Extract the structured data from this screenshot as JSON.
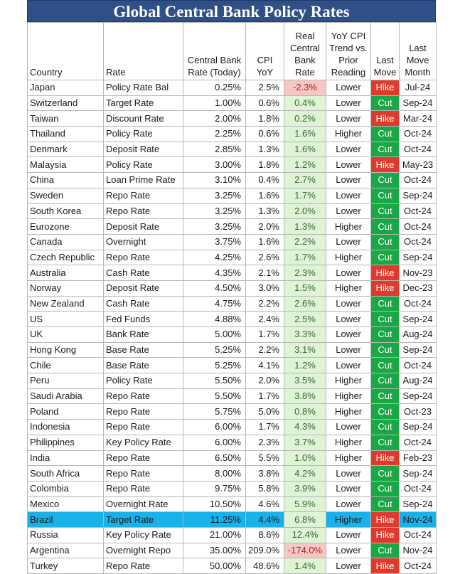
{
  "title": "Global Central Bank Policy Rates",
  "colors": {
    "title_bg": "#2f4f87",
    "hike": "#e03a2c",
    "cut": "#1aa746",
    "real_pos": "#dff3d6",
    "real_neg": "#f6c7c5",
    "highlight": "#1ab0e8"
  },
  "headers": {
    "country": "Country",
    "rate": "Rate",
    "cb_rate": "Central Bank Rate (Today)",
    "cpi": "CPI YoY",
    "real": "Real Central Bank Rate",
    "trend": "YoY CPI Trend vs. Prior Reading",
    "last_move": "Last Move",
    "last_month": "Last Move Month"
  },
  "rows": [
    {
      "country": "Japan",
      "rate": "Policy Rate Bal",
      "cb": "0.25%",
      "cpi": "2.5%",
      "real": "-2.3%",
      "trend": "Lower",
      "move": "Hike",
      "month": "Jul-24"
    },
    {
      "country": "Switzerland",
      "rate": "Target Rate",
      "cb": "1.00%",
      "cpi": "0.6%",
      "real": "0.4%",
      "trend": "Lower",
      "move": "Cut",
      "month": "Sep-24"
    },
    {
      "country": "Taiwan",
      "rate": "Discount Rate",
      "cb": "2.00%",
      "cpi": "1.8%",
      "real": "0.2%",
      "trend": "Lower",
      "move": "Hike",
      "month": "Mar-24"
    },
    {
      "country": "Thailand",
      "rate": "Policy Rate",
      "cb": "2.25%",
      "cpi": "0.6%",
      "real": "1.6%",
      "trend": "Higher",
      "move": "Cut",
      "month": "Oct-24"
    },
    {
      "country": "Denmark",
      "rate": "Deposit Rate",
      "cb": "2.85%",
      "cpi": "1.3%",
      "real": "1.6%",
      "trend": "Lower",
      "move": "Cut",
      "month": "Oct-24"
    },
    {
      "country": "Malaysia",
      "rate": "Policy Rate",
      "cb": "3.00%",
      "cpi": "1.8%",
      "real": "1.2%",
      "trend": "Lower",
      "move": "Hike",
      "month": "May-23"
    },
    {
      "country": "China",
      "rate": "Loan Prime Rate",
      "cb": "3.10%",
      "cpi": "0.4%",
      "real": "2.7%",
      "trend": "Lower",
      "move": "Cut",
      "month": "Oct-24"
    },
    {
      "country": "Sweden",
      "rate": "Repo Rate",
      "cb": "3.25%",
      "cpi": "1.6%",
      "real": "1.7%",
      "trend": "Lower",
      "move": "Cut",
      "month": "Sep-24"
    },
    {
      "country": "South Korea",
      "rate": "Repo Rate",
      "cb": "3.25%",
      "cpi": "1.3%",
      "real": "2.0%",
      "trend": "Lower",
      "move": "Cut",
      "month": "Oct-24"
    },
    {
      "country": "Eurozone",
      "rate": "Deposit Rate",
      "cb": "3.25%",
      "cpi": "2.0%",
      "real": "1.3%",
      "trend": "Higher",
      "move": "Cut",
      "month": "Oct-24"
    },
    {
      "country": "Canada",
      "rate": "Overnight",
      "cb": "3.75%",
      "cpi": "1.6%",
      "real": "2.2%",
      "trend": "Lower",
      "move": "Cut",
      "month": "Oct-24"
    },
    {
      "country": "Czech Republic",
      "rate": "Repo Rate",
      "cb": "4.25%",
      "cpi": "2.6%",
      "real": "1.7%",
      "trend": "Higher",
      "move": "Cut",
      "month": "Sep-24"
    },
    {
      "country": "Australia",
      "rate": "Cash Rate",
      "cb": "4.35%",
      "cpi": "2.1%",
      "real": "2.3%",
      "trend": "Lower",
      "move": "Hike",
      "month": "Nov-23"
    },
    {
      "country": "Norway",
      "rate": "Deposit Rate",
      "cb": "4.50%",
      "cpi": "3.0%",
      "real": "1.5%",
      "trend": "Higher",
      "move": "Hike",
      "month": "Dec-23"
    },
    {
      "country": "New Zealand",
      "rate": "Cash Rate",
      "cb": "4.75%",
      "cpi": "2.2%",
      "real": "2.6%",
      "trend": "Lower",
      "move": "Cut",
      "month": "Oct-24"
    },
    {
      "country": "US",
      "rate": "Fed Funds",
      "cb": "4.88%",
      "cpi": "2.4%",
      "real": "2.5%",
      "trend": "Lower",
      "move": "Cut",
      "month": "Sep-24"
    },
    {
      "country": "UK",
      "rate": "Bank Rate",
      "cb": "5.00%",
      "cpi": "1.7%",
      "real": "3.3%",
      "trend": "Lower",
      "move": "Cut",
      "month": "Aug-24"
    },
    {
      "country": "Hong Kong",
      "rate": "Base Rate",
      "cb": "5.25%",
      "cpi": "2.2%",
      "real": "3.1%",
      "trend": "Lower",
      "move": "Cut",
      "month": "Sep-24"
    },
    {
      "country": "Chile",
      "rate": "Base Rate",
      "cb": "5.25%",
      "cpi": "4.1%",
      "real": "1.2%",
      "trend": "Lower",
      "move": "Cut",
      "month": "Oct-24"
    },
    {
      "country": "Peru",
      "rate": "Policy Rate",
      "cb": "5.50%",
      "cpi": "2.0%",
      "real": "3.5%",
      "trend": "Higher",
      "move": "Cut",
      "month": "Aug-24"
    },
    {
      "country": "Saudi Arabia",
      "rate": "Repo Rate",
      "cb": "5.50%",
      "cpi": "1.7%",
      "real": "3.8%",
      "trend": "Higher",
      "move": "Cut",
      "month": "Sep-24"
    },
    {
      "country": "Poland",
      "rate": "Repo Rate",
      "cb": "5.75%",
      "cpi": "5.0%",
      "real": "0.8%",
      "trend": "Higher",
      "move": "Cut",
      "month": "Oct-23"
    },
    {
      "country": "Indonesia",
      "rate": "Repo Rate",
      "cb": "6.00%",
      "cpi": "1.7%",
      "real": "4.3%",
      "trend": "Lower",
      "move": "Cut",
      "month": "Sep-24"
    },
    {
      "country": "Philippines",
      "rate": "Key Policy Rate",
      "cb": "6.00%",
      "cpi": "2.3%",
      "real": "3.7%",
      "trend": "Higher",
      "move": "Cut",
      "month": "Oct-24"
    },
    {
      "country": "India",
      "rate": "Repo Rate",
      "cb": "6.50%",
      "cpi": "5.5%",
      "real": "1.0%",
      "trend": "Higher",
      "move": "Hike",
      "month": "Feb-23"
    },
    {
      "country": "South Africa",
      "rate": "Repo Rate",
      "cb": "8.00%",
      "cpi": "3.8%",
      "real": "4.2%",
      "trend": "Lower",
      "move": "Cut",
      "month": "Sep-24"
    },
    {
      "country": "Colombia",
      "rate": "Repo Rate",
      "cb": "9.75%",
      "cpi": "5.8%",
      "real": "3.9%",
      "trend": "Lower",
      "move": "Cut",
      "month": "Oct-24"
    },
    {
      "country": "Mexico",
      "rate": "Overnight Rate",
      "cb": "10.50%",
      "cpi": "4.6%",
      "real": "5.9%",
      "trend": "Lower",
      "move": "Cut",
      "month": "Sep-24"
    },
    {
      "country": "Brazil",
      "rate": "Target Rate",
      "cb": "11.25%",
      "cpi": "4.4%",
      "real": "6.8%",
      "trend": "Higher",
      "move": "Hike",
      "month": "Nov-24",
      "highlight": true
    },
    {
      "country": "Russia",
      "rate": "Key Policy Rate",
      "cb": "21.00%",
      "cpi": "8.6%",
      "real": "12.4%",
      "trend": "Lower",
      "move": "Hike",
      "month": "Oct-24"
    },
    {
      "country": "Argentina",
      "rate": "Overnight Repo",
      "cb": "35.00%",
      "cpi": "209.0%",
      "real": "-174.0%",
      "trend": "Lower",
      "move": "Cut",
      "month": "Nov-24"
    },
    {
      "country": "Turkey",
      "rate": "Repo Rate",
      "cb": "50.00%",
      "cpi": "48.6%",
      "real": "1.4%",
      "trend": "Lower",
      "move": "Hike",
      "month": "Oct-24"
    }
  ]
}
